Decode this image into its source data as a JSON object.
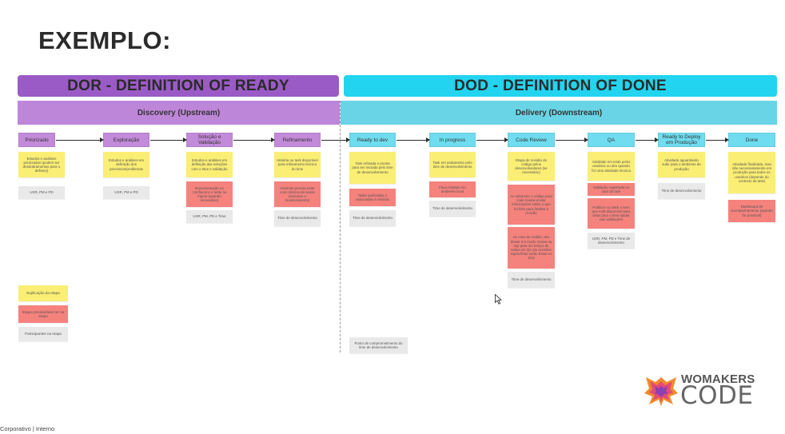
{
  "title": "EXEMPLO:",
  "dor_banner": "DOR - DEFINITION OF READY",
  "dod_banner": "DOD - DEFINITION OF DONE",
  "phase_dor": "Discovery (Upstream)",
  "phase_dod": "Delivery (Downstream)",
  "stages": {
    "priorizado": "Priorizado",
    "exploracao": "Exploração",
    "solucao": "Solução e Validação",
    "refinamento": "Refinamento",
    "ready_dev": "Ready to dev",
    "in_progress": "In progress",
    "code_review": "Code Review",
    "qa": "QA",
    "ready_deploy": "Ready to Deploy em Produção",
    "done": "Done"
  },
  "notes": {
    "priorizado_y": "Estudos e análises priorizados (podem ser desdobramentos para o delivery)",
    "priorizado_g": "UXR, PM e PD",
    "exploracao_y": "Estudos e análises em definição dos processos/problemas",
    "exploracao_g": "UXR, PM e PD",
    "solucao_y": "Estudos e análises em definição das soluções com o time e validação",
    "solucao_r": "Documentação no Confluence e teste no Figma (quando necessário)",
    "solucao_g": "UXR, PM, PD e Time",
    "refinamento_y": "História ou task disponível para refinamento técnico do time",
    "refinamento_r": "Histórias precisa estar com critérios de aceite (inclusive o monitoramento)",
    "refinamento_g": "Time de desenvolvimento",
    "ready_y": "Task refinada e pronta para ser iniciada pelo time de desenvolvimento",
    "ready_r": "Tasks quebradas e associadas à História",
    "ready_g": "Time de desenvolvimento",
    "progress_y": "Task em andamento pelo time de desenvolvimento",
    "progress_r": "Fluxo testado em ambiente local",
    "progress_g": "Time de desenvolvimento",
    "review_y": "Etapa de revisão de código pelos desenvolvedores (se necessário)",
    "review_r1": "Ao submeter o código para code review enviar informações sobre o que foi feito para facilitar a revisão",
    "review_r2": "Se caso de mobile, dev deixar em modo review na loja para um tempo de testar em QA (as revisões específicas serão feitas no Jira)",
    "review_g": "Time de desenvolvimento",
    "qa_y": "Atividade em teste pelos usuários ou dev quando for uma atividade técnica",
    "qa_r1": "Validação registrada no card da task",
    "qa_r2": "Publicar no slack o item que está disponível para teste para o time ajudar nas validações",
    "qa_g": "UXR, PM, PD e Time de desenvolvimento",
    "deploy_y": "Atividade aguardando subir para o ambiente de produção",
    "deploy_g": "Time de desenvolvimento",
    "done_y": "Atividade finalizada, mas não necessariamente em produção para todos os usuários (depende do contexto da task)",
    "done_r": "Dashboard de acompanhamento (quando for possível)"
  },
  "legend": {
    "yellow": "Explicação da etapa",
    "red": "Etapa precisa/deve ter na etapa",
    "gray": "Participantes na etapa"
  },
  "commitment_note": "Ponto de comprometimento do time de desenvolvimento",
  "logo": {
    "top": "WOMAKERS",
    "bottom": "CODE"
  },
  "footer": "Corporativo | Interno",
  "colors": {
    "dor": "#9b5bc6",
    "dod": "#22d4ef",
    "note_yellow": "#fbee74",
    "note_red": "#f5827d",
    "note_gray": "#e9e9e9"
  }
}
